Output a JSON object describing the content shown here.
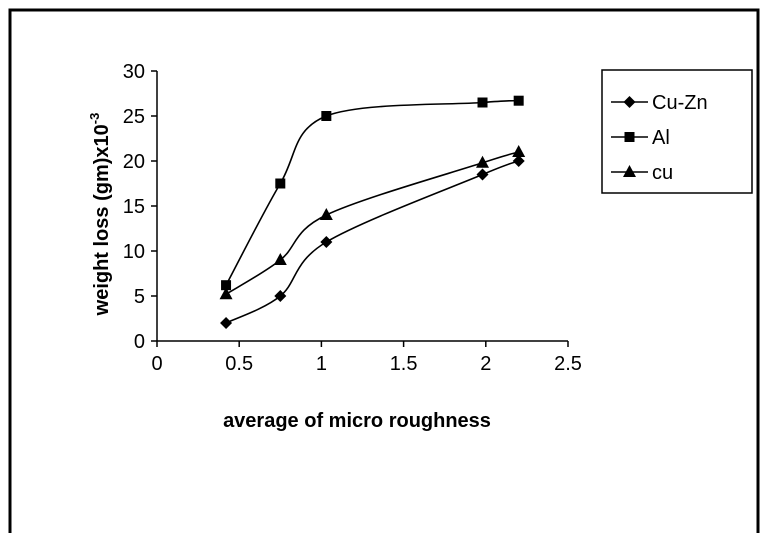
{
  "chart_data": {
    "type": "line",
    "title": "",
    "xlabel": "average of micro roughness",
    "ylabel": "weight loss (gm)x10",
    "ylabel_superscript": "-3",
    "xlim": [
      0,
      2.5
    ],
    "ylim": [
      0,
      30
    ],
    "xticks": [
      "0",
      "0.5",
      "1",
      "1.5",
      "2",
      "2.5"
    ],
    "yticks": [
      "0",
      "5",
      "10",
      "15",
      "20",
      "25",
      "30"
    ],
    "grid": false,
    "legend_position": "right",
    "series": [
      {
        "name": "Cu-Zn",
        "marker": "diamond",
        "color": "#000000",
        "x": [
          0.42,
          0.75,
          1.03,
          1.98,
          2.2
        ],
        "y": [
          2,
          5,
          11,
          18.5,
          20
        ]
      },
      {
        "name": "Al",
        "marker": "square",
        "color": "#000000",
        "x": [
          0.42,
          0.75,
          1.03,
          1.98,
          2.2
        ],
        "y": [
          6.2,
          17.5,
          25,
          26.5,
          26.7
        ]
      },
      {
        "name": "cu",
        "marker": "triangle",
        "color": "#000000",
        "x": [
          0.42,
          0.75,
          1.03,
          1.98,
          2.2
        ],
        "y": [
          5.2,
          9,
          14,
          19.8,
          21
        ]
      }
    ]
  }
}
